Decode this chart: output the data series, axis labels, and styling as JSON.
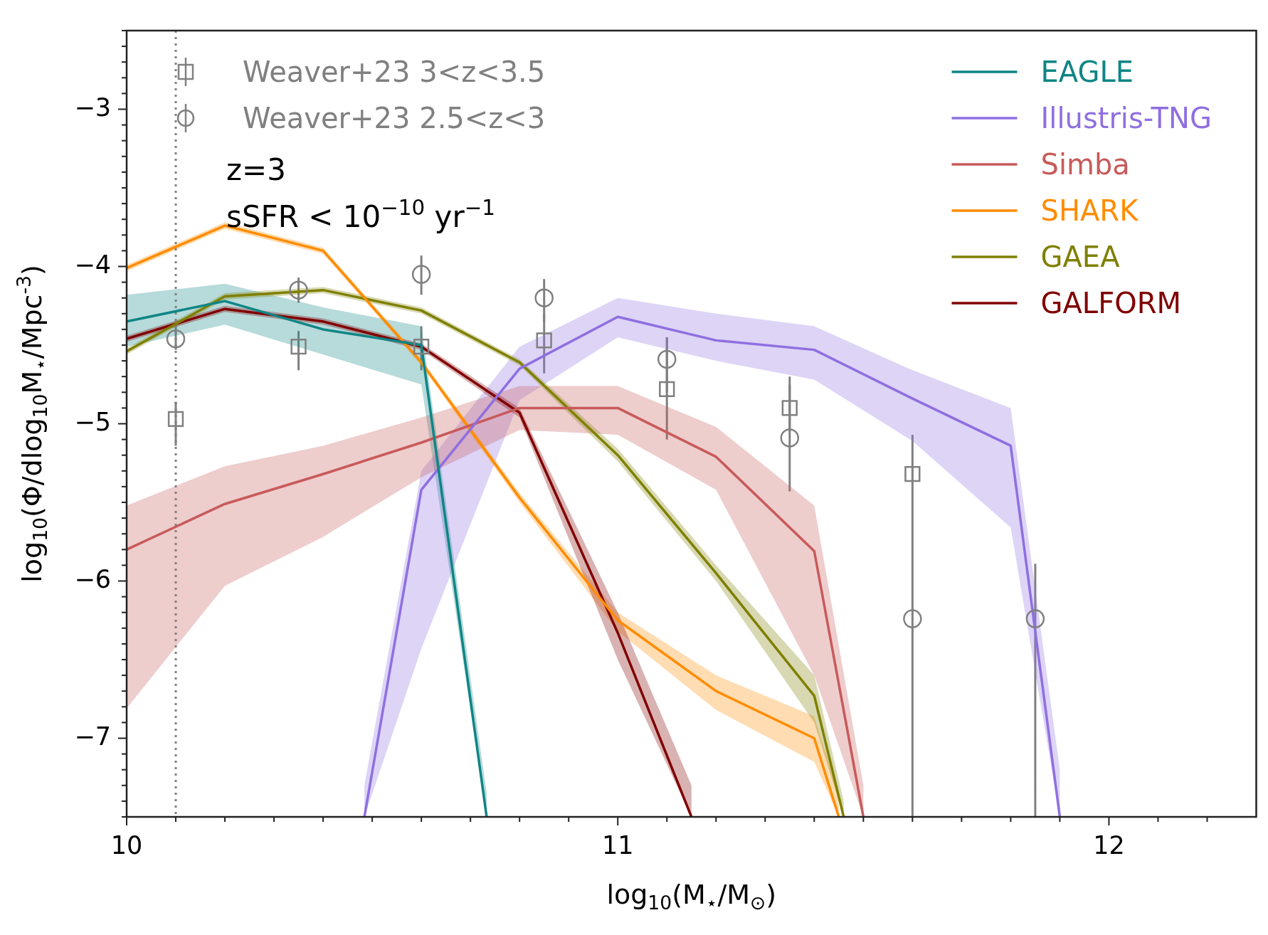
{
  "chart_data": {
    "type": "line",
    "xlabel": "log$_{10}$(M$_{⋆}$/M$_{⊙}$)",
    "ylabel": "log$_{10}$(Φ/dlog$_{10}$M$_{⋆}$/Mpc$^{-3}$)",
    "xlim": [
      10,
      12.3
    ],
    "ylim": [
      -7.5,
      -2.5
    ],
    "xticks": [
      10,
      {
        "value": 10.1,
        "label": null
      },
      {
        "value": 10.2,
        "label": null
      },
      {
        "value": 10.3,
        "label": null
      },
      {
        "value": 10.4,
        "label": null
      },
      {
        "value": 10.5,
        "label": null
      },
      {
        "value": 10.6,
        "label": null
      },
      {
        "value": 10.7,
        "label": null
      },
      {
        "value": 10.8,
        "label": null
      },
      {
        "value": 10.9,
        "label": null
      },
      11,
      {
        "value": 11.1,
        "label": null
      },
      {
        "value": 11.2,
        "label": null
      },
      {
        "value": 11.3,
        "label": null
      },
      {
        "value": 11.4,
        "label": null
      },
      {
        "value": 11.5,
        "label": null
      },
      {
        "value": 11.6,
        "label": null
      },
      {
        "value": 11.7,
        "label": null
      },
      {
        "value": 11.8,
        "label": null
      },
      {
        "value": 11.9,
        "label": null
      },
      12,
      {
        "value": 12.1,
        "label": null
      },
      {
        "value": 12.2,
        "label": null
      }
    ],
    "yticks": [
      {
        "value": -7.5,
        "label": null
      },
      {
        "value": -7.4,
        "label": null
      },
      {
        "value": -7.3,
        "label": null
      },
      {
        "value": -7.2,
        "label": null
      },
      {
        "value": -7.1,
        "label": null
      },
      {
        "value": -7,
        "label": "−7"
      },
      {
        "value": -6.9,
        "label": null
      },
      {
        "value": -6.8,
        "label": null
      },
      {
        "value": -6.7,
        "label": null
      },
      {
        "value": -6.6,
        "label": null
      },
      {
        "value": -6.5,
        "label": null
      },
      {
        "value": -6.4,
        "label": null
      },
      {
        "value": -6.3,
        "label": null
      },
      {
        "value": -6.2,
        "label": null
      },
      {
        "value": -6.1,
        "label": null
      },
      {
        "value": -6,
        "label": "−6"
      },
      {
        "value": -5.9,
        "label": null
      },
      {
        "value": -5.8,
        "label": null
      },
      {
        "value": -5.7,
        "label": null
      },
      {
        "value": -5.6,
        "label": null
      },
      {
        "value": -5.5,
        "label": null
      },
      {
        "value": -5.4,
        "label": null
      },
      {
        "value": -5.3,
        "label": null
      },
      {
        "value": -5.2,
        "label": null
      },
      {
        "value": -5.1,
        "label": null
      },
      {
        "value": -5,
        "label": "−5"
      },
      {
        "value": -4.9,
        "label": null
      },
      {
        "value": -4.8,
        "label": null
      },
      {
        "value": -4.7,
        "label": null
      },
      {
        "value": -4.6,
        "label": null
      },
      {
        "value": -4.5,
        "label": null
      },
      {
        "value": -4.4,
        "label": null
      },
      {
        "value": -4.3,
        "label": null
      },
      {
        "value": -4.2,
        "label": null
      },
      {
        "value": -4.1,
        "label": null
      },
      {
        "value": -4,
        "label": "−4"
      },
      {
        "value": -3.9,
        "label": null
      },
      {
        "value": -3.8,
        "label": null
      },
      {
        "value": -3.7,
        "label": null
      },
      {
        "value": -3.6,
        "label": null
      },
      {
        "value": -3.5,
        "label": null
      },
      {
        "value": -3.4,
        "label": null
      },
      {
        "value": -3.3,
        "label": null
      },
      {
        "value": -3.2,
        "label": null
      },
      {
        "value": -3.1,
        "label": null
      },
      {
        "value": -3,
        "label": "−3"
      },
      {
        "value": -2.9,
        "label": null
      },
      {
        "value": -2.8,
        "label": null
      },
      {
        "value": -2.7,
        "label": null
      },
      {
        "value": -2.6,
        "label": null
      },
      {
        "value": -2.5,
        "label": null
      }
    ],
    "legend": "top right",
    "ref_lines": [
      {
        "axis": "x",
        "value": 10.1,
        "color": "#808080",
        "line_style": "dotted"
      }
    ],
    "annotations": [
      "z=3",
      "sSFR < 10$^{−10}$ yr$^{−1}$"
    ],
    "series": [
      {
        "name": "Weaver+23 3<z<3.5",
        "type": "scatter",
        "marker": "square",
        "color": "#808080",
        "x": [
          10.1,
          10.35,
          10.6,
          10.85,
          11.1,
          11.35,
          11.6
        ],
        "values": [
          -4.97,
          -4.51,
          -4.51,
          -4.47,
          -4.78,
          -4.9,
          -5.32
        ],
        "errors": [
          [
            -5.14,
            -4.86
          ],
          [
            -4.66,
            -4.41
          ],
          [
            -4.66,
            -4.38
          ],
          [
            -4.68,
            -4.3
          ],
          [
            -5.1,
            -4.45
          ],
          [
            -5.05,
            -4.75
          ],
          null
        ]
      },
      {
        "name": "Weaver+23 2.5<z<3",
        "type": "scatter",
        "marker": "circle",
        "color": "#808080",
        "x": [
          10.1,
          10.35,
          10.6,
          10.85,
          11.1,
          11.35,
          11.6,
          11.85
        ],
        "values": [
          -4.46,
          -4.15,
          -4.05,
          -4.2,
          -4.59,
          -5.09,
          -6.24,
          -6.24
        ],
        "errors": [
          [
            -4.53,
            -4.38
          ],
          [
            -4.23,
            -4.07
          ],
          [
            -4.18,
            -3.93
          ],
          [
            -4.35,
            -4.08
          ],
          [
            -4.8,
            -4.45
          ],
          [
            -5.43,
            -4.7
          ],
          [
            -7.5,
            -5.07
          ],
          [
            -7.5,
            -5.89
          ]
        ]
      },
      {
        "name": "EAGLE",
        "color": "#0f8585",
        "x": [
          10,
          10.2,
          10.4,
          10.6,
          10.733
        ],
        "values": [
          -4.35,
          -4.22,
          -4.4,
          -4.5,
          -7.5
        ],
        "upper": [
          -4.18,
          -4.11,
          -4.26,
          -4.38,
          -7.35
        ],
        "lower": [
          -4.51,
          -4.37,
          -4.56,
          -4.75,
          -7.5
        ]
      },
      {
        "name": "Illustris-TNG",
        "color": "#8f6fe0",
        "x": [
          10.484,
          10.6,
          10.8,
          11.0,
          11.2,
          11.4,
          11.6,
          11.8,
          11.9
        ],
        "values": [
          -7.5,
          -5.42,
          -4.65,
          -4.32,
          -4.47,
          -4.53,
          -4.84,
          -5.14,
          -7.5
        ],
        "upper": [
          -7.3,
          -5.3,
          -4.51,
          -4.2,
          -4.3,
          -4.38,
          -4.66,
          -4.9,
          -7.2
        ],
        "lower": [
          -7.5,
          -6.43,
          -4.85,
          -4.45,
          -4.6,
          -4.72,
          -5.11,
          -5.66,
          -7.5
        ]
      },
      {
        "name": "Simba",
        "color": "#c85a5a",
        "x": [
          10,
          10.2,
          10.4,
          10.6,
          10.8,
          11.0,
          11.2,
          11.4,
          11.5
        ],
        "values": [
          -5.8,
          -5.51,
          -5.32,
          -5.12,
          -4.9,
          -4.9,
          -5.21,
          -5.81,
          -7.5
        ],
        "upper": [
          -5.52,
          -5.27,
          -5.14,
          -4.96,
          -4.76,
          -4.76,
          -5.02,
          -5.52,
          -7.3
        ],
        "lower": [
          -6.81,
          -6.03,
          -5.72,
          -5.34,
          -5.04,
          -5.07,
          -5.42,
          -6.6,
          -7.5
        ]
      },
      {
        "name": "SHARK",
        "color": "#ff8c00",
        "x": [
          10,
          10.2,
          10.4,
          10.6,
          10.8,
          11.0,
          11.2,
          11.4,
          11.45
        ],
        "values": [
          -4.01,
          -3.74,
          -3.9,
          -4.61,
          -5.47,
          -6.25,
          -6.7,
          -7.0,
          -7.5
        ],
        "upper": [
          -3.99,
          -3.72,
          -3.88,
          -4.59,
          -5.44,
          -6.2,
          -6.6,
          -6.86,
          -7.35
        ],
        "lower": [
          -4.03,
          -3.76,
          -3.92,
          -4.63,
          -5.5,
          -6.32,
          -6.82,
          -7.15,
          -7.5
        ]
      },
      {
        "name": "GAEA",
        "color": "#7f8000",
        "x": [
          10,
          10.2,
          10.4,
          10.6,
          10.8,
          11.0,
          11.2,
          11.4,
          11.46
        ],
        "values": [
          -4.54,
          -4.19,
          -4.15,
          -4.28,
          -4.61,
          -5.2,
          -5.95,
          -6.73,
          -7.5
        ],
        "upper": [
          -4.52,
          -4.17,
          -4.13,
          -4.26,
          -4.59,
          -5.16,
          -5.9,
          -6.6,
          -7.4
        ],
        "lower": [
          -4.56,
          -4.21,
          -4.17,
          -4.3,
          -4.63,
          -5.24,
          -6.0,
          -6.9,
          -7.5
        ]
      },
      {
        "name": "GALFORM",
        "color": "#800000",
        "x": [
          10,
          10.2,
          10.4,
          10.6,
          10.8,
          11.0,
          11.15
        ],
        "values": [
          -4.46,
          -4.27,
          -4.35,
          -4.51,
          -4.93,
          -6.33,
          -7.5
        ],
        "upper": [
          -4.44,
          -4.25,
          -4.33,
          -4.49,
          -4.9,
          -6.2,
          -7.3
        ],
        "lower": [
          -4.48,
          -4.29,
          -4.37,
          -4.53,
          -4.96,
          -6.5,
          -7.5
        ]
      }
    ]
  }
}
